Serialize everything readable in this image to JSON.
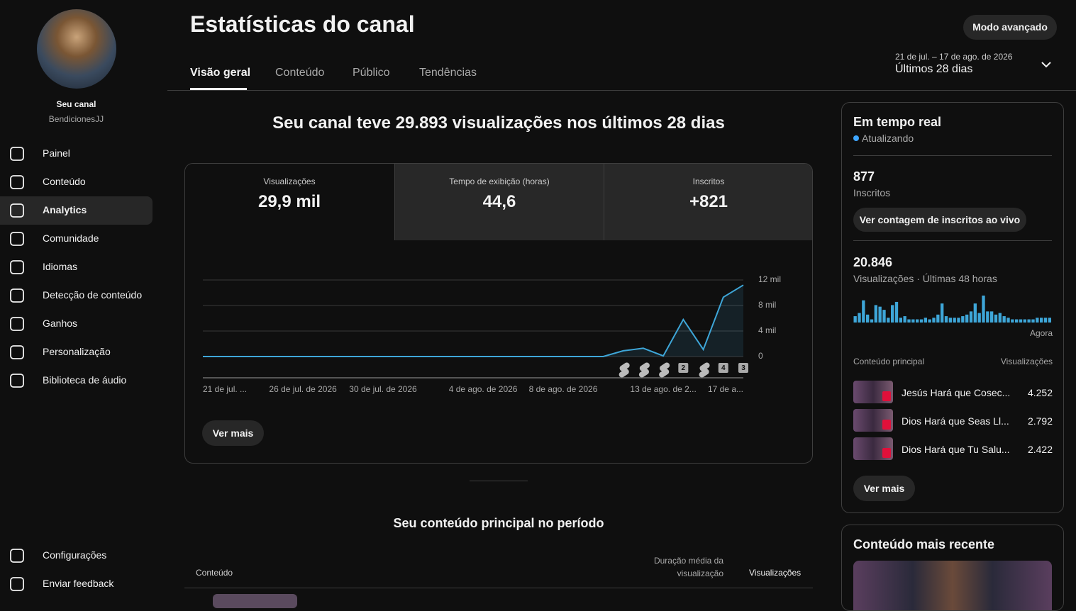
{
  "sidebar": {
    "channel_label": "Seu canal",
    "channel_name": "BendicionesJJ",
    "nav": [
      "Painel",
      "Conteúdo",
      "Analytics",
      "Comunidade",
      "Idiomas",
      "Detecção de conteúdo",
      "Ganhos",
      "Personalização",
      "Biblioteca de áudio"
    ],
    "footer_nav": [
      "Configurações",
      "Enviar feedback"
    ]
  },
  "header": {
    "title": "Estatísticas do canal",
    "tabs": [
      "Visão geral",
      "Conteúdo",
      "Público",
      "Tendências"
    ],
    "advanced_button": "Modo avançado",
    "date_range": "21 de jul. – 17 de ago. de 2026",
    "period": "Últimos 28 dias"
  },
  "overview": {
    "headline": "Seu canal teve 29.893 visualizações nos últimos 28 dias",
    "metrics": [
      {
        "label": "Visualizações",
        "value": "29,9 mil"
      },
      {
        "label": "Tempo de exibição (horas)",
        "value": "44,6"
      },
      {
        "label": "Inscritos",
        "value": "+821"
      }
    ],
    "see_more": "Ver mais"
  },
  "chart_data": {
    "type": "line",
    "categories": [
      "21 de jul. ...",
      null,
      null,
      null,
      null,
      "26 de jul. de 2026",
      null,
      null,
      null,
      "30 de jul. de 2026",
      null,
      null,
      null,
      null,
      "4 de ago. de 2026",
      null,
      null,
      null,
      "8 de ago. de 2026",
      null,
      null,
      null,
      null,
      "13 de ago. de 2...",
      null,
      null,
      null,
      "17 de a..."
    ],
    "values": [
      0,
      0,
      0,
      0,
      0,
      0,
      0,
      0,
      0,
      0,
      0,
      0,
      0,
      0,
      0,
      0,
      0,
      0,
      0,
      0,
      0,
      900,
      1300,
      100,
      5800,
      1100,
      9300,
      11200
    ],
    "color": "#3ea6d8",
    "ylim": [
      0,
      12000
    ],
    "yticks": [
      0,
      {
        "value": 4000,
        "label": "4 mil"
      },
      {
        "value": 8000,
        "label": "8 mil"
      },
      {
        "value": 12000,
        "label": "12 mil"
      }
    ],
    "grid": true,
    "markers": [
      null,
      null,
      null,
      "2",
      null,
      "4",
      "3"
    ]
  },
  "top_content": {
    "title": "Seu conteúdo principal no período",
    "columns": [
      "Conteúdo",
      "Duração média da visualização",
      "Visualizações"
    ]
  },
  "realtime": {
    "title": "Em tempo real",
    "status": "Atualizando",
    "subscribers": "877",
    "subscribers_label": "Inscritos",
    "live_count_button": "Ver contagem de inscritos ao vivo",
    "views": "20.846",
    "views_label": "Visualizações · Últimas 48 horas",
    "bars": [
      8,
      12,
      28,
      10,
      4,
      22,
      20,
      16,
      6,
      22,
      26,
      6,
      8,
      4,
      4,
      4,
      4,
      6,
      4,
      6,
      10,
      24,
      8,
      6,
      6,
      6,
      8,
      10,
      14,
      24,
      12,
      34,
      14,
      14,
      10,
      12,
      8,
      6,
      4,
      4,
      4,
      4,
      4,
      4,
      6,
      6,
      6,
      6
    ],
    "bars_end_label": "Agora",
    "content_header": "Conteúdo principal",
    "views_header": "Visualizações",
    "rows": [
      {
        "title": "Jesús Hará que Cosec...",
        "views": "4.252"
      },
      {
        "title": "Dios Hará que Seas Ll...",
        "views": "2.792"
      },
      {
        "title": "Dios Hará que Tu Salu...",
        "views": "2.422"
      }
    ],
    "see_more": "Ver mais"
  },
  "latest": {
    "title": "Conteúdo mais recente"
  }
}
